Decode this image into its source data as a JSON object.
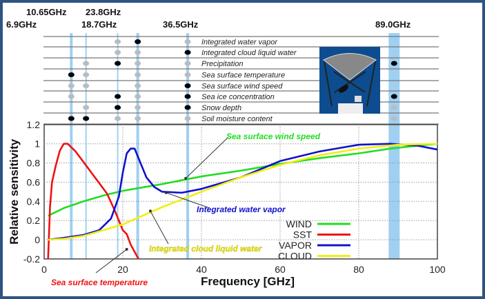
{
  "colors": {
    "wind": "#22dd22",
    "sst": "#ee1111",
    "vapor": "#1111cc",
    "cloud": "#f2ee10",
    "band": "#9fd0f2",
    "frame": "#2f5482"
  },
  "table": {
    "channels": [
      "6.9GHz",
      "10.65GHz",
      "18.7GHz",
      "23.8GHz",
      "36.5GHz",
      "89.0GHz"
    ],
    "channel_freqs": [
      6.9,
      10.65,
      18.7,
      23.8,
      36.5,
      89.0
    ],
    "rows": [
      {
        "label": "Integrated water vapor",
        "dots": [
          "",
          "",
          "g",
          "b",
          "g",
          ""
        ]
      },
      {
        "label": "Integrated cloud liquid water",
        "dots": [
          "",
          "",
          "g",
          "g",
          "b",
          ""
        ]
      },
      {
        "label": "Precipitation",
        "dots": [
          "",
          "g",
          "b",
          "g",
          "g",
          "b"
        ]
      },
      {
        "label": "Sea surface temperature",
        "dots": [
          "b",
          "g",
          "",
          "g",
          "g",
          ""
        ]
      },
      {
        "label": "Sea surface wind speed",
        "dots": [
          "g",
          "g",
          "",
          "g",
          "b",
          ""
        ]
      },
      {
        "label": "Sea ice concentration",
        "dots": [
          "g",
          "",
          "b",
          "g",
          "b",
          "b"
        ]
      },
      {
        "label": "Snow depth",
        "dots": [
          "",
          "g",
          "b",
          "g",
          "b",
          "g"
        ]
      },
      {
        "label": "Soil moisture content",
        "dots": [
          "b",
          "b",
          "g",
          "g",
          "g",
          "g"
        ]
      }
    ]
  },
  "chart_data": {
    "type": "line",
    "xlabel": "Frequency [GHz]",
    "ylabel": "Relative sensitivity",
    "xlim": [
      0,
      100
    ],
    "ylim": [
      -0.2,
      1.2
    ],
    "xticks": [
      "0",
      "20",
      "40",
      "60",
      "80",
      "100"
    ],
    "xtick_values": [
      0,
      20,
      40,
      60,
      80,
      100
    ],
    "yticks": [
      "-0.2",
      "0",
      "0.2",
      "0.4",
      "0.6",
      "0.8",
      "1",
      "1.2"
    ],
    "ytick_values": [
      -0.2,
      0,
      0.2,
      0.4,
      0.6,
      0.8,
      1,
      1.2
    ],
    "grid": true,
    "legend_position": "bottom-right",
    "series": [
      {
        "name": "WIND",
        "key": "wind",
        "x": [
          1,
          5,
          10,
          15,
          20,
          30,
          40,
          50,
          60,
          70,
          80,
          88,
          95,
          100
        ],
        "y": [
          0.25,
          0.33,
          0.4,
          0.46,
          0.51,
          0.58,
          0.66,
          0.72,
          0.79,
          0.85,
          0.9,
          0.95,
          0.98,
          1.0
        ]
      },
      {
        "name": "SST",
        "key": "sst",
        "x": [
          1,
          1.5,
          2,
          3,
          4,
          5,
          6,
          8,
          12,
          16,
          18,
          19,
          20,
          21,
          22,
          24
        ],
        "y": [
          -0.2,
          0.35,
          0.6,
          0.78,
          0.93,
          1.0,
          1.0,
          0.92,
          0.7,
          0.48,
          0.3,
          0.2,
          0.1,
          0.06,
          -0.05,
          -0.2
        ]
      },
      {
        "name": "VAPOR",
        "key": "vapor",
        "x": [
          1,
          5,
          10,
          14,
          17,
          19,
          20,
          21,
          22,
          23,
          24,
          26,
          28,
          30,
          35,
          40,
          50,
          60,
          70,
          80,
          88,
          95,
          100
        ],
        "y": [
          0,
          0.02,
          0.05,
          0.1,
          0.22,
          0.45,
          0.7,
          0.9,
          0.95,
          0.95,
          0.85,
          0.65,
          0.55,
          0.5,
          0.49,
          0.53,
          0.65,
          0.82,
          0.92,
          0.99,
          1.0,
          0.98,
          0.94
        ]
      },
      {
        "name": "CLOUD",
        "key": "cloud",
        "x": [
          1,
          5,
          10,
          15,
          20,
          25,
          30,
          40,
          50,
          60,
          70,
          80,
          90,
          100
        ],
        "y": [
          0,
          0.01,
          0.04,
          0.1,
          0.16,
          0.25,
          0.34,
          0.5,
          0.65,
          0.78,
          0.88,
          0.95,
          0.99,
          1.0
        ]
      }
    ],
    "annotations": [
      {
        "text": "Sea surface wind speed",
        "key": "wind",
        "target": [
          36,
          0.64
        ]
      },
      {
        "text": "Integrated water vapor",
        "key": "vapor",
        "target": [
          31,
          0.49
        ]
      },
      {
        "text": "Integrated cloud liquid water",
        "key": "cloud",
        "target": [
          27,
          0.3
        ]
      },
      {
        "text": "Sea surface temperature",
        "key": "sst",
        "target": [
          21,
          -0.1
        ]
      }
    ]
  }
}
